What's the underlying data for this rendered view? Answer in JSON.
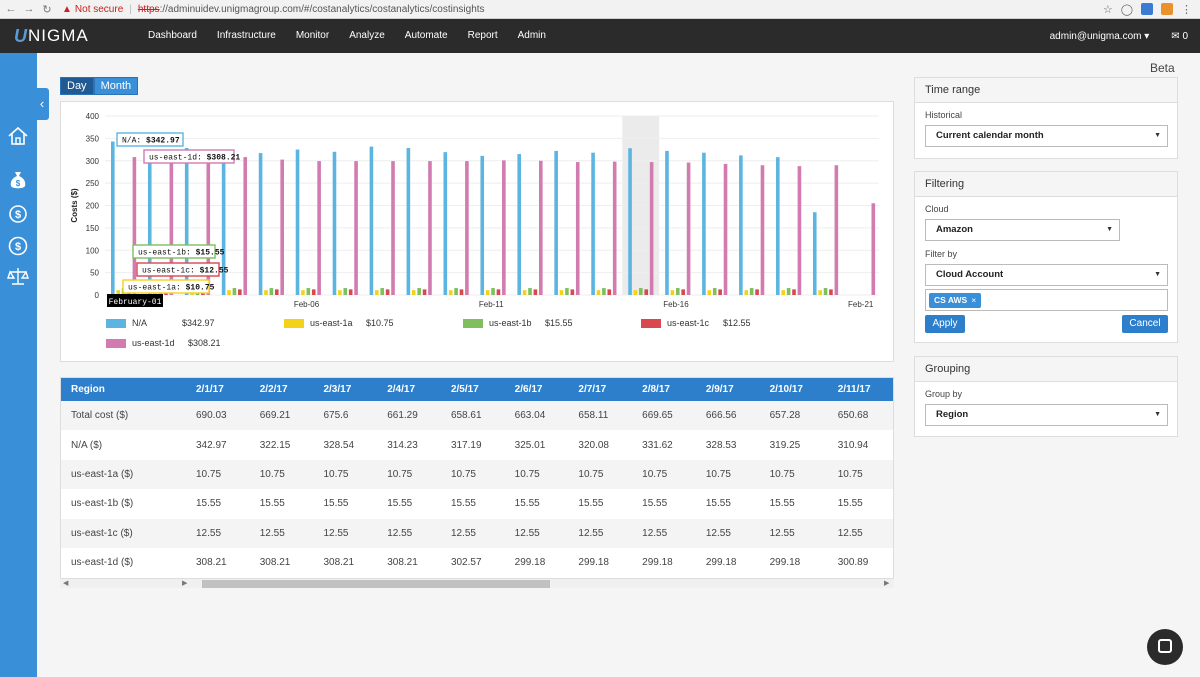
{
  "browser": {
    "not_secure": "Not secure",
    "url_proto": "https",
    "url_rest": "://adminuidev.unigmagroup.com/#/costanalytics/costanalytics/costinsights"
  },
  "app": {
    "logo_mark": "U",
    "logo_text": "NIGMA",
    "menu": [
      "Dashboard",
      "Infrastructure",
      "Monitor",
      "Analyze",
      "Automate",
      "Report",
      "Admin"
    ],
    "user": "admin@unigma.com ▾",
    "mail_count": "0"
  },
  "page": {
    "beta": "Beta"
  },
  "view_toggle": {
    "day": "Day",
    "month": "Month"
  },
  "chart_data": {
    "type": "bar",
    "ylabel": "Costs ($)",
    "ylim": [
      0,
      400
    ],
    "yticks": [
      0,
      50,
      100,
      150,
      200,
      250,
      300,
      350,
      400
    ],
    "x_tick_labels": [
      {
        "day": 6,
        "label": "Feb-06"
      },
      {
        "day": 11,
        "label": "Feb-11"
      },
      {
        "day": 16,
        "label": "Feb-16"
      },
      {
        "day": 21,
        "label": "Feb-21"
      }
    ],
    "days": [
      1,
      2,
      3,
      4,
      5,
      6,
      7,
      8,
      9,
      10,
      11,
      12,
      13,
      14,
      15,
      16,
      17,
      18,
      19,
      20,
      21
    ],
    "series": [
      {
        "name": "N/A",
        "color": "#5bb5e0",
        "values": [
          342.97,
          322.15,
          328.54,
          314.23,
          317.19,
          325.01,
          320.08,
          331.62,
          328.53,
          319.25,
          310.94,
          315,
          322,
          318,
          328,
          322,
          318,
          312,
          308,
          185,
          0
        ]
      },
      {
        "name": "us-east-1a",
        "color": "#f2d21a",
        "values": [
          10.75,
          10.75,
          10.75,
          10.75,
          10.75,
          10.75,
          10.75,
          10.75,
          10.75,
          10.75,
          10.75,
          10.75,
          10.75,
          10.75,
          10.75,
          10.75,
          10.75,
          10.75,
          10.75,
          10.75,
          0
        ]
      },
      {
        "name": "us-east-1b",
        "color": "#7fbf5f",
        "values": [
          15.55,
          15.55,
          15.55,
          15.55,
          15.55,
          15.55,
          15.55,
          15.55,
          15.55,
          15.55,
          15.55,
          15.55,
          15.55,
          15.55,
          15.55,
          15.55,
          15.55,
          15.55,
          15.55,
          15.55,
          0
        ]
      },
      {
        "name": "us-east-1c",
        "color": "#d9474f",
        "values": [
          12.55,
          12.55,
          12.55,
          12.55,
          12.55,
          12.55,
          12.55,
          12.55,
          12.55,
          12.55,
          12.55,
          12.55,
          12.55,
          12.55,
          12.55,
          12.55,
          12.55,
          12.55,
          12.55,
          12.55,
          0
        ]
      },
      {
        "name": "us-east-1d",
        "color": "#d17bb0",
        "values": [
          308.21,
          308.21,
          308.21,
          308.21,
          302.57,
          299.18,
          299.18,
          299.18,
          299.18,
          299.18,
          300.89,
          300,
          297,
          298,
          297,
          296,
          293,
          290,
          288,
          290,
          205
        ]
      }
    ],
    "highlight_day": 15,
    "tooltip": {
      "date": "February-01",
      "items": [
        {
          "series": "N/A",
          "label": "N/A:",
          "value": "$342.97"
        },
        {
          "series": "us-east-1d",
          "label": "us-east-1d:",
          "value": "$308.21"
        },
        {
          "series": "us-east-1b",
          "label": "us-east-1b:",
          "value": "$15.55"
        },
        {
          "series": "us-east-1c",
          "label": "us-east-1c:",
          "value": "$12.55"
        },
        {
          "series": "us-east-1a",
          "label": "us-east-1a:",
          "value": "$10.75"
        }
      ]
    },
    "legend": [
      {
        "name": "N/A",
        "value": "$342.97",
        "color": "#5bb5e0"
      },
      {
        "name": "us-east-1a",
        "value": "$10.75",
        "color": "#f2d21a"
      },
      {
        "name": "us-east-1b",
        "value": "$15.55",
        "color": "#7fbf5f"
      },
      {
        "name": "us-east-1c",
        "value": "$12.55",
        "color": "#d9474f"
      },
      {
        "name": "us-east-1d",
        "value": "$308.21",
        "color": "#d17bb0"
      }
    ]
  },
  "table": {
    "headers": [
      "Region",
      "2/1/17",
      "2/2/17",
      "2/3/17",
      "2/4/17",
      "2/5/17",
      "2/6/17",
      "2/7/17",
      "2/8/17",
      "2/9/17",
      "2/10/17",
      "2/11/17"
    ],
    "rows": [
      [
        "Total cost ($)",
        "690.03",
        "669.21",
        "675.6",
        "661.29",
        "658.61",
        "663.04",
        "658.11",
        "669.65",
        "666.56",
        "657.28",
        "650.68"
      ],
      [
        "N/A ($)",
        "342.97",
        "322.15",
        "328.54",
        "314.23",
        "317.19",
        "325.01",
        "320.08",
        "331.62",
        "328.53",
        "319.25",
        "310.94"
      ],
      [
        "us-east-1a ($)",
        "10.75",
        "10.75",
        "10.75",
        "10.75",
        "10.75",
        "10.75",
        "10.75",
        "10.75",
        "10.75",
        "10.75",
        "10.75"
      ],
      [
        "us-east-1b ($)",
        "15.55",
        "15.55",
        "15.55",
        "15.55",
        "15.55",
        "15.55",
        "15.55",
        "15.55",
        "15.55",
        "15.55",
        "15.55"
      ],
      [
        "us-east-1c ($)",
        "12.55",
        "12.55",
        "12.55",
        "12.55",
        "12.55",
        "12.55",
        "12.55",
        "12.55",
        "12.55",
        "12.55",
        "12.55"
      ],
      [
        "us-east-1d ($)",
        "308.21",
        "308.21",
        "308.21",
        "308.21",
        "302.57",
        "299.18",
        "299.18",
        "299.18",
        "299.18",
        "299.18",
        "300.89"
      ]
    ]
  },
  "time_range": {
    "title": "Time range",
    "historical_label": "Historical",
    "historical_value": "Current calendar month"
  },
  "filtering": {
    "title": "Filtering",
    "cloud_label": "Cloud",
    "cloud_value": "Amazon",
    "filter_by_label": "Filter by",
    "filter_by_value": "Cloud Account",
    "tag": "CS AWS",
    "apply": "Apply",
    "cancel": "Cancel"
  },
  "grouping": {
    "title": "Grouping",
    "group_by_label": "Group by",
    "group_by_value": "Region"
  }
}
